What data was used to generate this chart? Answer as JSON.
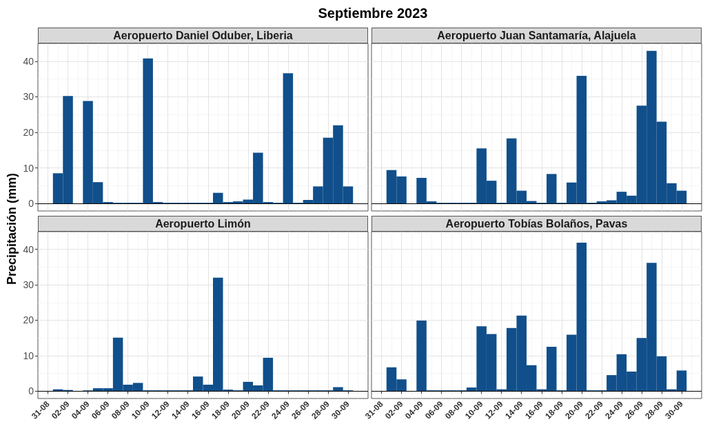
{
  "chart_data": [
    {
      "type": "bar",
      "title": "Aeropuerto Daniel Oduber, Liberia",
      "annotations": [
        "Septiembre 2023"
      ],
      "ylabel": "Precipitación (mm)",
      "x": [
        "2023-09-01",
        "2023-09-02",
        "2023-09-03",
        "2023-09-04",
        "2023-09-05",
        "2023-09-06",
        "2023-09-07",
        "2023-09-08",
        "2023-09-09",
        "2023-09-10",
        "2023-09-11",
        "2023-09-12",
        "2023-09-13",
        "2023-09-14",
        "2023-09-15",
        "2023-09-16",
        "2023-09-17",
        "2023-09-18",
        "2023-09-19",
        "2023-09-20",
        "2023-09-21",
        "2023-09-22",
        "2023-09-23",
        "2023-09-24",
        "2023-09-25",
        "2023-09-26",
        "2023-09-27",
        "2023-09-28",
        "2023-09-29",
        "2023-09-30"
      ],
      "values": [
        8.5,
        30.2,
        null,
        28.8,
        6.0,
        0.4,
        0.2,
        0.2,
        0.2,
        40.8,
        0.4,
        0.2,
        0.2,
        0.2,
        0.2,
        0.2,
        3.0,
        0.4,
        0.6,
        1.1,
        14.3,
        0.4,
        0.2,
        36.6,
        0.2,
        1.0,
        4.8,
        18.5,
        22.0,
        4.8
      ],
      "color": "#104f8b",
      "xlim": [
        "2023-08-30",
        "2023-10-02"
      ],
      "xticks": [
        {
          "value": "2023-08-31",
          "label": null
        },
        {
          "value": "2023-09-02",
          "label": null
        },
        {
          "value": "2023-09-04",
          "label": null
        },
        {
          "value": "2023-09-06",
          "label": null
        },
        {
          "value": "2023-09-08",
          "label": null
        },
        {
          "value": "2023-09-10",
          "label": null
        },
        {
          "value": "2023-09-12",
          "label": null
        },
        {
          "value": "2023-09-14",
          "label": null
        },
        {
          "value": "2023-09-16",
          "label": null
        },
        {
          "value": "2023-09-18",
          "label": null
        },
        {
          "value": "2023-09-20",
          "label": null
        },
        {
          "value": "2023-09-22",
          "label": null
        },
        {
          "value": "2023-09-24",
          "label": null
        },
        {
          "value": "2023-09-26",
          "label": null
        },
        {
          "value": "2023-09-28",
          "label": null
        },
        {
          "value": "2023-09-30",
          "label": null
        }
      ],
      "ylim": [
        -2.1,
        45
      ],
      "yticks": [
        0,
        10,
        20,
        30,
        40
      ],
      "grid": true,
      "ref_lines": [
        {
          "axis": "y",
          "value": 0,
          "color": "#000000"
        }
      ],
      "tick_labels": "y"
    },
    {
      "type": "bar",
      "title": "Aeropuerto Juan Santamaría, Alajuela",
      "x": [
        "2023-09-01",
        "2023-09-02",
        "2023-09-03",
        "2023-09-04",
        "2023-09-05",
        "2023-09-06",
        "2023-09-07",
        "2023-09-08",
        "2023-09-09",
        "2023-09-10",
        "2023-09-11",
        "2023-09-12",
        "2023-09-13",
        "2023-09-14",
        "2023-09-15",
        "2023-09-16",
        "2023-09-17",
        "2023-09-18",
        "2023-09-19",
        "2023-09-20",
        "2023-09-21",
        "2023-09-22",
        "2023-09-23",
        "2023-09-24",
        "2023-09-25",
        "2023-09-26",
        "2023-09-27",
        "2023-09-28",
        "2023-09-29",
        "2023-09-30"
      ],
      "values": [
        9.4,
        7.6,
        null,
        7.2,
        0.6,
        0.2,
        0.2,
        0.2,
        0.2,
        15.5,
        6.4,
        0.2,
        18.3,
        3.6,
        0.7,
        0.2,
        8.3,
        0.2,
        5.9,
        35.9,
        0.2,
        0.6,
        0.9,
        3.3,
        2.2,
        27.5,
        42.9,
        23.0,
        5.7,
        3.6
      ],
      "color": "#104f8b",
      "xlim": [
        "2023-08-30",
        "2023-10-02"
      ],
      "xticks": [
        {
          "value": "2023-08-31",
          "label": null
        },
        {
          "value": "2023-09-02",
          "label": null
        },
        {
          "value": "2023-09-04",
          "label": null
        },
        {
          "value": "2023-09-06",
          "label": null
        },
        {
          "value": "2023-09-08",
          "label": null
        },
        {
          "value": "2023-09-10",
          "label": null
        },
        {
          "value": "2023-09-12",
          "label": null
        },
        {
          "value": "2023-09-14",
          "label": null
        },
        {
          "value": "2023-09-16",
          "label": null
        },
        {
          "value": "2023-09-18",
          "label": null
        },
        {
          "value": "2023-09-20",
          "label": null
        },
        {
          "value": "2023-09-22",
          "label": null
        },
        {
          "value": "2023-09-24",
          "label": null
        },
        {
          "value": "2023-09-26",
          "label": null
        },
        {
          "value": "2023-09-28",
          "label": null
        },
        {
          "value": "2023-09-30",
          "label": null
        }
      ],
      "ylim": [
        -2.1,
        45
      ],
      "yticks": [
        0,
        10,
        20,
        30,
        40
      ],
      "grid": true,
      "ref_lines": [
        {
          "axis": "y",
          "value": 0,
          "color": "#000000"
        }
      ],
      "tick_labels": false
    },
    {
      "type": "bar",
      "title": "Aeropuerto Limón",
      "x": [
        "2023-09-01",
        "2023-09-02",
        "2023-09-03",
        "2023-09-04",
        "2023-09-05",
        "2023-09-06",
        "2023-09-07",
        "2023-09-08",
        "2023-09-09",
        "2023-09-10",
        "2023-09-11",
        "2023-09-12",
        "2023-09-13",
        "2023-09-14",
        "2023-09-15",
        "2023-09-16",
        "2023-09-17",
        "2023-09-18",
        "2023-09-19",
        "2023-09-20",
        "2023-09-21",
        "2023-09-22",
        "2023-09-23",
        "2023-09-24",
        "2023-09-25",
        "2023-09-26",
        "2023-09-27",
        "2023-09-28",
        "2023-09-29",
        "2023-09-30"
      ],
      "values": [
        0.5,
        0.3,
        null,
        0.2,
        0.8,
        0.8,
        15.1,
        1.8,
        2.3,
        0.2,
        0.2,
        0.2,
        0.2,
        0.2,
        4.1,
        1.8,
        32.0,
        0.4,
        0.2,
        2.6,
        1.6,
        9.4,
        0.2,
        0.2,
        0.2,
        0.2,
        0.2,
        0.2,
        1.1,
        0.2
      ],
      "color": "#104f8b",
      "xlim": [
        "2023-08-30",
        "2023-10-02"
      ],
      "xticks": [
        {
          "value": "2023-08-31",
          "label": "31-08"
        },
        {
          "value": "2023-09-02",
          "label": "02-09"
        },
        {
          "value": "2023-09-04",
          "label": "04-09"
        },
        {
          "value": "2023-09-06",
          "label": "06-09"
        },
        {
          "value": "2023-09-08",
          "label": "08-09"
        },
        {
          "value": "2023-09-10",
          "label": "10-09"
        },
        {
          "value": "2023-09-12",
          "label": "12-09"
        },
        {
          "value": "2023-09-14",
          "label": "14-09"
        },
        {
          "value": "2023-09-16",
          "label": "16-09"
        },
        {
          "value": "2023-09-18",
          "label": "18-09"
        },
        {
          "value": "2023-09-20",
          "label": "20-09"
        },
        {
          "value": "2023-09-22",
          "label": "22-09"
        },
        {
          "value": "2023-09-24",
          "label": "24-09"
        },
        {
          "value": "2023-09-26",
          "label": "26-09"
        },
        {
          "value": "2023-09-28",
          "label": "28-09"
        },
        {
          "value": "2023-09-30",
          "label": "30-09"
        }
      ],
      "ylim": [
        -2.1,
        45
      ],
      "yticks": [
        0,
        10,
        20,
        30,
        40
      ],
      "grid": true,
      "ref_lines": [
        {
          "axis": "y",
          "value": 0,
          "color": "#000000"
        }
      ]
    },
    {
      "type": "bar",
      "title": "Aeropuerto Tobías Bolaños, Pavas",
      "x": [
        "2023-09-01",
        "2023-09-02",
        "2023-09-03",
        "2023-09-04",
        "2023-09-05",
        "2023-09-06",
        "2023-09-07",
        "2023-09-08",
        "2023-09-09",
        "2023-09-10",
        "2023-09-11",
        "2023-09-12",
        "2023-09-13",
        "2023-09-14",
        "2023-09-15",
        "2023-09-16",
        "2023-09-17",
        "2023-09-18",
        "2023-09-19",
        "2023-09-20",
        "2023-09-21",
        "2023-09-22",
        "2023-09-23",
        "2023-09-24",
        "2023-09-25",
        "2023-09-26",
        "2023-09-27",
        "2023-09-28",
        "2023-09-29",
        "2023-09-30"
      ],
      "values": [
        6.7,
        3.3,
        null,
        19.9,
        0.2,
        0.2,
        0.2,
        0.2,
        1.0,
        18.3,
        16.1,
        0.5,
        17.8,
        21.3,
        7.3,
        0.5,
        12.5,
        0.2,
        15.9,
        41.9,
        0.2,
        0.2,
        4.5,
        10.4,
        5.5,
        15.0,
        36.2,
        9.8,
        0.5,
        5.8
      ],
      "color": "#104f8b",
      "xlim": [
        "2023-08-30",
        "2023-10-02"
      ],
      "xticks": [
        {
          "value": "2023-08-31",
          "label": "31-08"
        },
        {
          "value": "2023-09-02",
          "label": "02-09"
        },
        {
          "value": "2023-09-04",
          "label": "04-09"
        },
        {
          "value": "2023-09-06",
          "label": "06-09"
        },
        {
          "value": "2023-09-08",
          "label": "08-09"
        },
        {
          "value": "2023-09-10",
          "label": "10-09"
        },
        {
          "value": "2023-09-12",
          "label": "12-09"
        },
        {
          "value": "2023-09-14",
          "label": "14-09"
        },
        {
          "value": "2023-09-16",
          "label": "16-09"
        },
        {
          "value": "2023-09-18",
          "label": "18-09"
        },
        {
          "value": "2023-09-20",
          "label": "20-09"
        },
        {
          "value": "2023-09-22",
          "label": "22-09"
        },
        {
          "value": "2023-09-24",
          "label": "24-09"
        },
        {
          "value": "2023-09-26",
          "label": "26-09"
        },
        {
          "value": "2023-09-28",
          "label": "28-09"
        },
        {
          "value": "2023-09-30",
          "label": "30-09"
        }
      ],
      "ylim": [
        -2.1,
        45
      ],
      "yticks": [
        0,
        10,
        20,
        30,
        40
      ],
      "grid": true,
      "ref_lines": [
        {
          "axis": "y",
          "value": 0,
          "color": "#000000"
        }
      ],
      "tick_labels": "x"
    }
  ]
}
